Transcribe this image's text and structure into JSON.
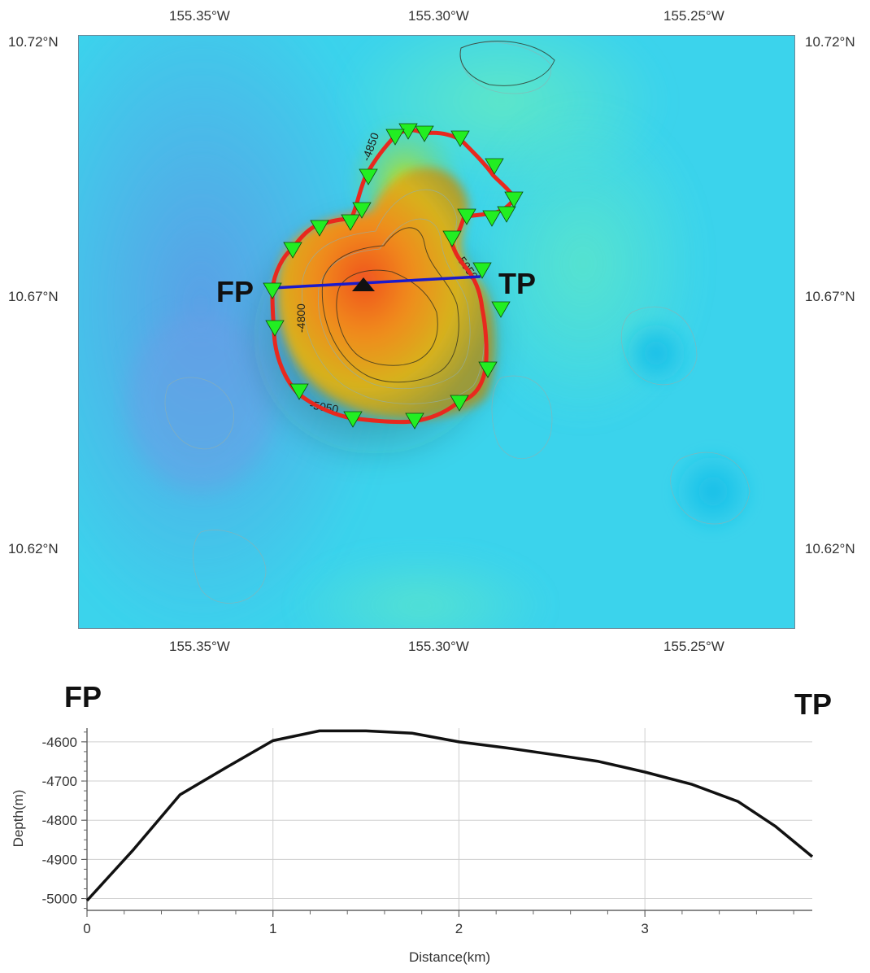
{
  "map": {
    "lon_ticks": [
      "155.35°W",
      "155.30°W",
      "155.25°W"
    ],
    "lat_ticks": [
      "10.72°N",
      "10.67°N",
      "10.62°N"
    ],
    "contour_labels": [
      "-4800",
      "-5050",
      "-5050",
      "-4850"
    ],
    "fp_label": "FP",
    "tp_label": "TP",
    "colors": {
      "background": "#35d2ee",
      "outline": "#e8281e",
      "profile_line": "#1a1acc",
      "markers": "#22ee22",
      "summit_peak": "#f0501e"
    },
    "icons": [
      "triangle-down-marker",
      "summit-triangle-icon"
    ]
  },
  "profile": {
    "fp_label": "FP",
    "tp_label": "TP",
    "chart_data": {
      "type": "line",
      "xlabel": "Distance(km)",
      "ylabel": "Depth(m)",
      "xlim": [
        0,
        3.9
      ],
      "ylim": [
        -5030,
        -4565
      ],
      "x_ticks": [
        "0",
        "1",
        "2",
        "3"
      ],
      "y_ticks": [
        "-4600",
        "-4700",
        "-4800",
        "-4900",
        "-5000"
      ],
      "grid": true,
      "series": [
        {
          "x": [
            0,
            0.25,
            0.5,
            0.75,
            1.0,
            1.25,
            1.5,
            1.75,
            2.0,
            2.25,
            2.5,
            2.75,
            3.0,
            3.25,
            3.5,
            3.7,
            3.9
          ],
          "y": [
            -5005,
            -4875,
            -4735,
            -4665,
            -4597,
            -4572,
            -4572,
            -4578,
            -4600,
            -4615,
            -4632,
            -4650,
            -4677,
            -4708,
            -4752,
            -4815,
            -4893
          ]
        }
      ]
    }
  }
}
